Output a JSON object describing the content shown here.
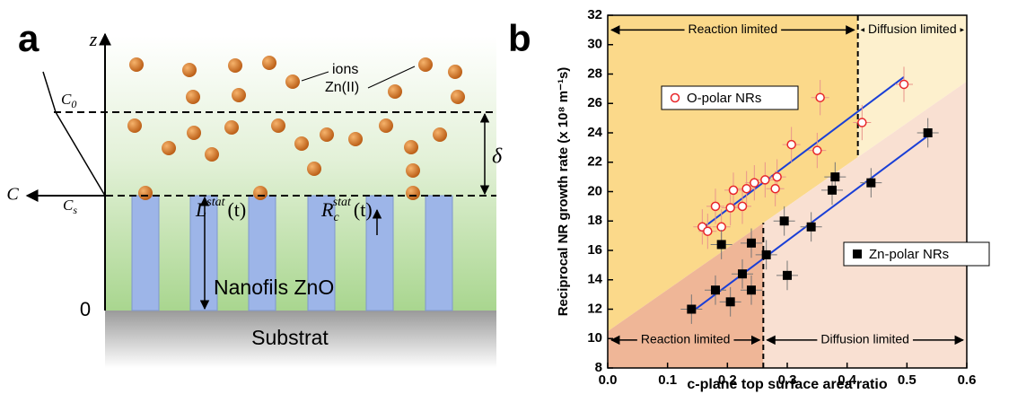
{
  "diagram": {
    "panel_label": "a",
    "z_axis": "z",
    "c_axis": "C",
    "c0": {
      "base": "C",
      "sub": "0"
    },
    "cs": {
      "base": "C",
      "sub": "s"
    },
    "ions": "ions",
    "species": "Zn(II)",
    "delta": "δ",
    "length": {
      "base": "L",
      "sup": "stat",
      "arg": "(t)"
    },
    "radius": {
      "base": "R",
      "sub": "c",
      "sup": "stat",
      "arg": "(t)"
    },
    "nanowires": "Nanofils ZnO",
    "origin": "0",
    "substrate": "Substrat"
  },
  "chart_data": {
    "type": "scatter",
    "panel_label": "b",
    "x_label": "c-plane top surface area ratio",
    "y_label": "Reciprocal NR growth rate (x 10⁸ m⁻¹s)",
    "xlim": [
      0,
      0.6
    ],
    "ylim": [
      8,
      32
    ],
    "xticks": [
      {
        "value": 0,
        "label": "0.0"
      },
      0.1,
      0.2,
      0.3,
      0.4,
      0.5,
      0.6
    ],
    "yticks": [
      8,
      10,
      12,
      14,
      16,
      18,
      20,
      22,
      24,
      26,
      28,
      30,
      32
    ],
    "series": [
      {
        "name": "O-polar NRs",
        "color": "#e8262a",
        "error_color": "#e9958c",
        "marker": "circle-open",
        "x": [
          0.158,
          0.167,
          0.18,
          0.19,
          0.205,
          0.21,
          0.225,
          0.232,
          0.245,
          0.263,
          0.28,
          0.283,
          0.307,
          0.35,
          0.355,
          0.425,
          0.495
        ],
        "values": [
          17.6,
          17.3,
          19.0,
          17.6,
          18.9,
          20.1,
          19.0,
          20.2,
          20.6,
          20.8,
          20.2,
          21.0,
          23.2,
          22.8,
          26.4,
          24.7,
          27.3
        ],
        "xerr": 0.015,
        "yerr": 1.2
      },
      {
        "name": "Zn-polar NRs",
        "color": "#000000",
        "error_color": "#777777",
        "marker": "square",
        "x": [
          0.14,
          0.18,
          0.19,
          0.205,
          0.225,
          0.24,
          0.24,
          0.265,
          0.295,
          0.3,
          0.34,
          0.375,
          0.38,
          0.44,
          0.535
        ],
        "values": [
          12.0,
          13.3,
          16.4,
          12.5,
          14.4,
          13.3,
          16.5,
          15.7,
          18.0,
          14.3,
          17.6,
          20.1,
          21.0,
          20.6,
          24.0
        ],
        "xerr": 0.018,
        "yerr": 1.0
      }
    ],
    "fits": [
      {
        "color": "#1a3fd6",
        "x": [
          0.158,
          0.495
        ],
        "y": [
          17.5,
          27.8
        ]
      },
      {
        "color": "#1a3fd6",
        "x": [
          0.14,
          0.535
        ],
        "y": [
          11.8,
          23.8
        ]
      }
    ],
    "boundary": {
      "x": [
        0,
        0.6
      ],
      "y": [
        10.5,
        27.5
      ]
    },
    "dividers": [
      {
        "x": 0.418,
        "side": "upper"
      },
      {
        "x": 0.26,
        "side": "lower"
      }
    ],
    "region_colors": {
      "upper_left": "#fbd98a",
      "upper_right": "#fdf0cd",
      "lower_left": "#efb697",
      "lower_right": "#f9e0d2"
    },
    "annotations": [
      {
        "text": "Reaction limited",
        "y": 31
      },
      {
        "text": "Diffusion limited",
        "y": 31
      },
      {
        "text": "Reaction limited",
        "y": 9.9
      },
      {
        "text": "Diffusion limited",
        "y": 9.9
      }
    ]
  }
}
